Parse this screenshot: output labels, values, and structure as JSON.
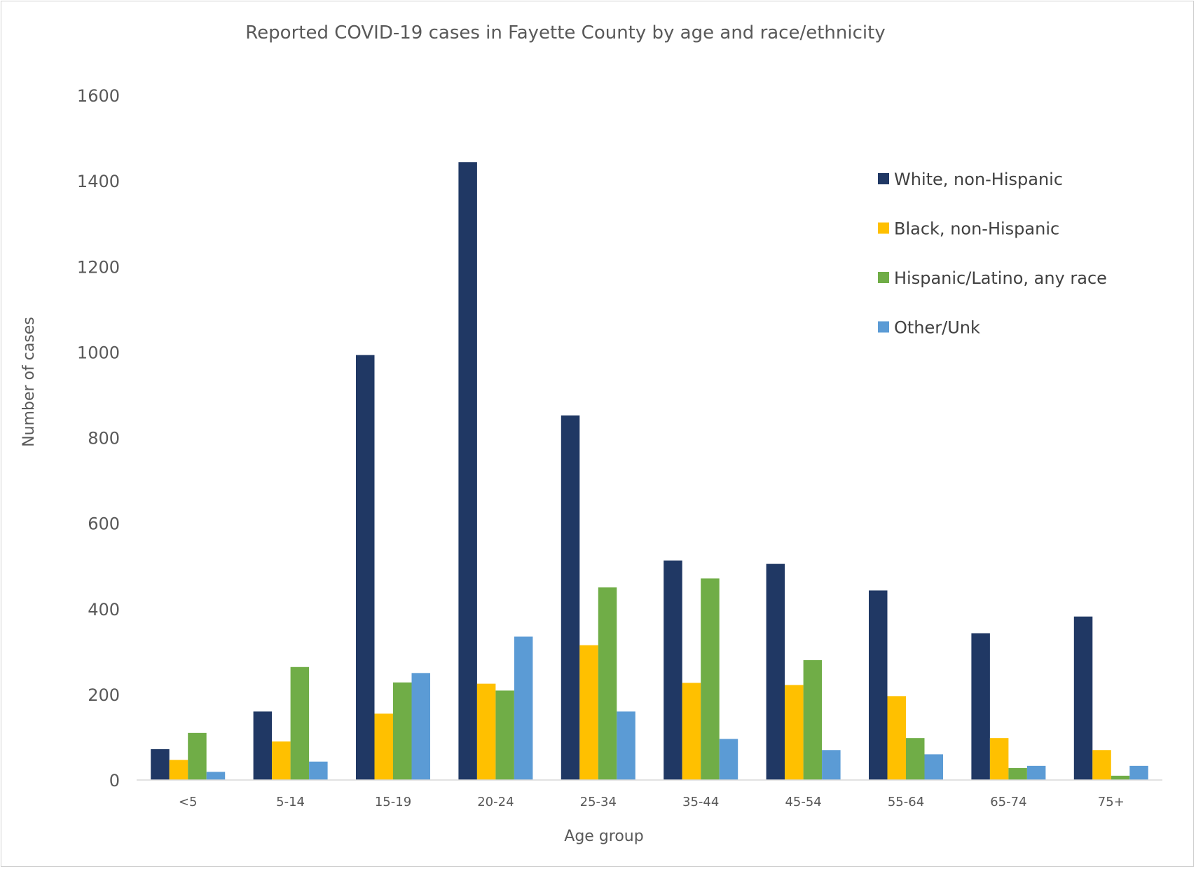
{
  "chart_data": {
    "type": "bar",
    "title": "Reported COVID-19 cases in Fayette County by age and race/ethnicity",
    "xlabel": "Age group",
    "ylabel": "Number of cases",
    "ylim": [
      0,
      1600
    ],
    "yticks": [
      "0",
      "200",
      "400",
      "600",
      "800",
      "1000",
      "1200",
      "1400",
      "1600"
    ],
    "grid": false,
    "legend_position": "top-right",
    "categories": [
      "<5",
      "5-14",
      "15-19",
      "20-24",
      "25-34",
      "35-44",
      "45-54",
      "55-64",
      "65-74",
      "75+"
    ],
    "series": [
      {
        "name": "White, non-Hispanic",
        "color": "#203864",
        "values": [
          72,
          160,
          993,
          1444,
          852,
          513,
          505,
          443,
          343,
          382
        ]
      },
      {
        "name": "Black, non-Hispanic",
        "color": "#FFC000",
        "values": [
          47,
          90,
          155,
          225,
          315,
          227,
          222,
          196,
          98,
          70
        ]
      },
      {
        "name": "Hispanic/Latino, any race",
        "color": "#70AD47",
        "values": [
          110,
          264,
          228,
          209,
          450,
          471,
          280,
          98,
          28,
          10
        ]
      },
      {
        "name": "Other/Unk",
        "color": "#5B9BD5",
        "values": [
          19,
          43,
          250,
          335,
          160,
          96,
          70,
          60,
          33,
          33
        ]
      }
    ]
  }
}
